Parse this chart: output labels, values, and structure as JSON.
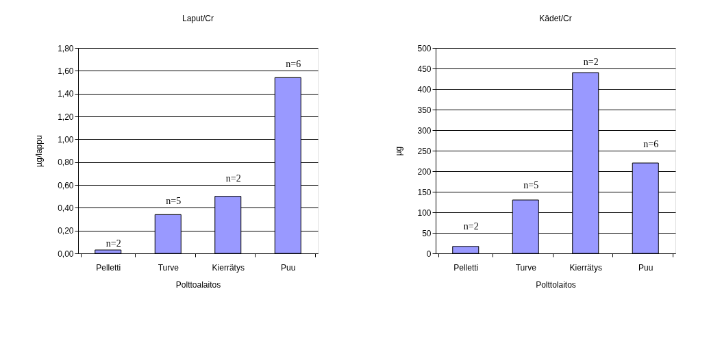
{
  "chart_data": [
    {
      "type": "bar",
      "title": "Laput/Cr",
      "xlabel": "Polttoalaitos",
      "ylabel": "µg/lappu",
      "categories": [
        "Pelletti",
        "Turve",
        "Kierrätys",
        "Puu"
      ],
      "series": [
        {
          "color": "#9999ff",
          "values": [
            0.03,
            0.34,
            0.5,
            1.54
          ]
        }
      ],
      "ylim": [
        0,
        1.8
      ],
      "yticks": [
        {
          "value": 0,
          "label": "0,00"
        },
        {
          "value": 0.2,
          "label": "0,20"
        },
        {
          "value": 0.4,
          "label": "0,40"
        },
        {
          "value": 0.6,
          "label": "0,60"
        },
        {
          "value": 0.8,
          "label": "0,80"
        },
        {
          "value": 1.0,
          "label": "1,00"
        },
        {
          "value": 1.2,
          "label": "1,20"
        },
        {
          "value": 1.4,
          "label": "1,40"
        },
        {
          "value": 1.6,
          "label": "1,60"
        },
        {
          "value": 1.8,
          "label": "1,80"
        }
      ],
      "grid": "y",
      "annotations": [
        "n=2",
        "n=5",
        "n=2",
        "n=6"
      ]
    },
    {
      "type": "bar",
      "title": "Kädet/Cr",
      "xlabel": "Polttolaitos",
      "ylabel": "µg",
      "categories": [
        "Pelletti",
        "Turve",
        "Kierrätys",
        "Puu"
      ],
      "series": [
        {
          "color": "#9999ff",
          "values": [
            17,
            130,
            440,
            220
          ]
        }
      ],
      "ylim": [
        0,
        500
      ],
      "yticks": [
        0,
        50,
        100,
        150,
        200,
        250,
        300,
        350,
        400,
        450,
        500
      ],
      "grid": "y",
      "annotations": [
        "n=2",
        "n=5",
        "n=2",
        "n=6"
      ]
    }
  ]
}
